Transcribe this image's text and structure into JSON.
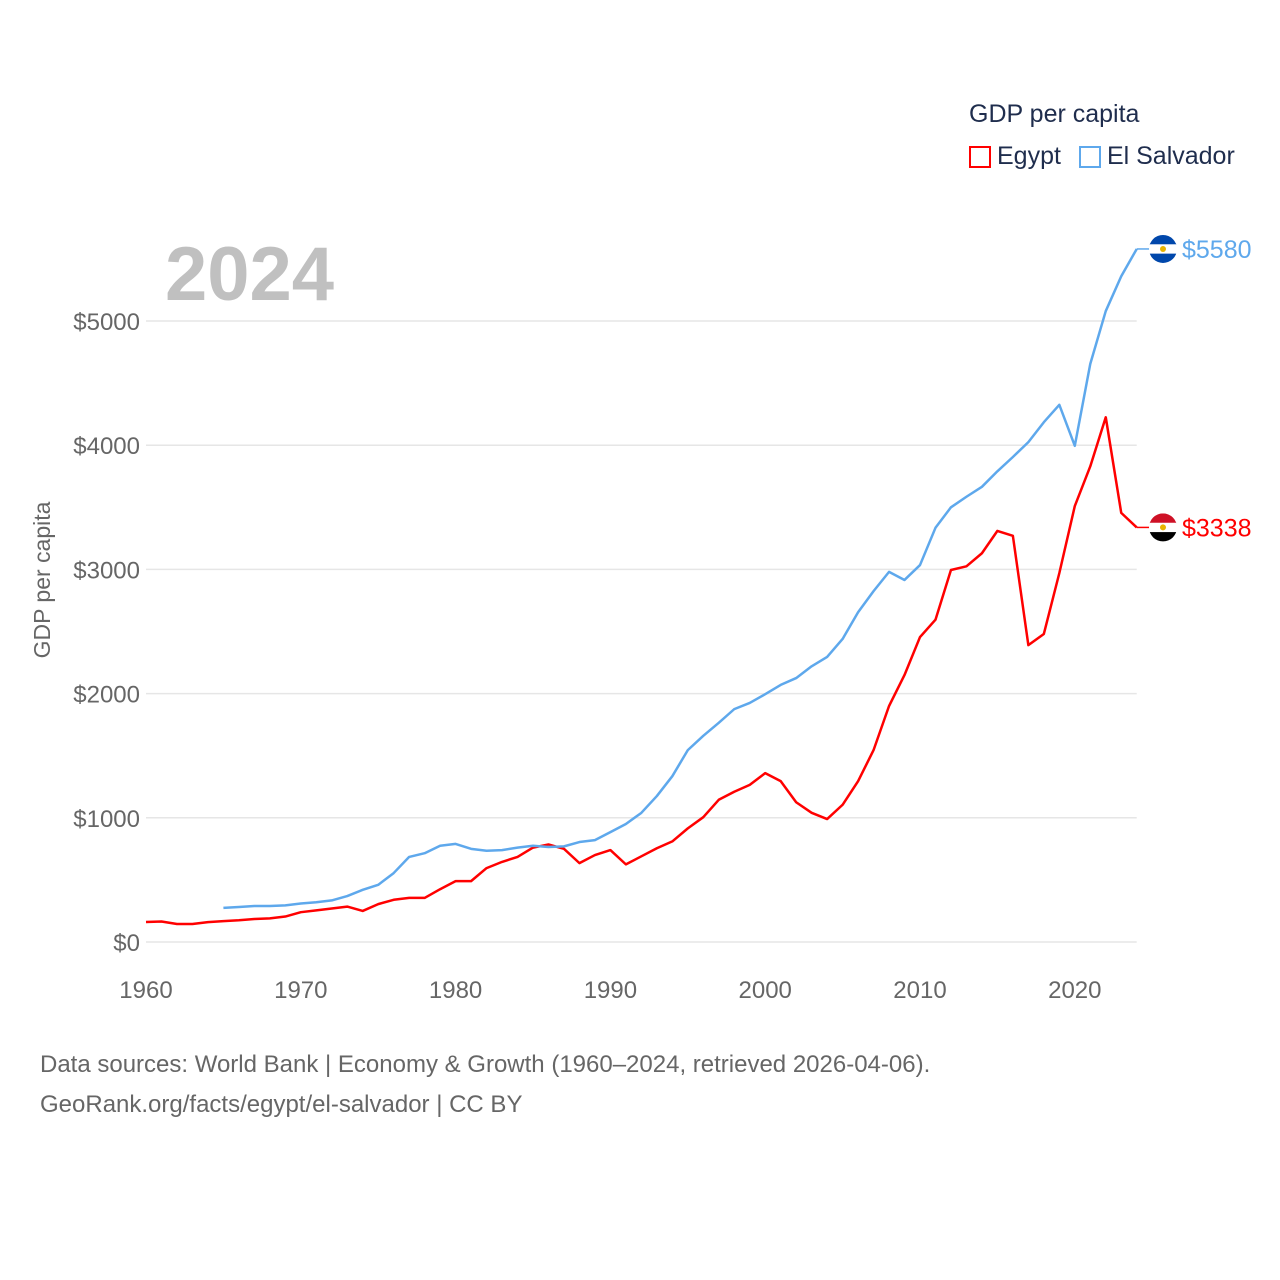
{
  "chart_data": {
    "type": "line",
    "title": "GDP per capita",
    "year_label": "2024",
    "ylabel": "GDP per capita",
    "xlabel": "",
    "xlim": [
      1960,
      2024
    ],
    "ylim": [
      0,
      5600
    ],
    "x_ticks": [
      1960,
      1970,
      1980,
      1990,
      2000,
      2010,
      2020
    ],
    "x_tick_labels": [
      "1960",
      "1970",
      "1980",
      "1990",
      "2000",
      "2010",
      "2020"
    ],
    "y_ticks": [
      0,
      1000,
      2000,
      3000,
      4000,
      5000
    ],
    "y_tick_labels": [
      "$0",
      "$1000",
      "$2000",
      "$3000",
      "$4000",
      "$5000"
    ],
    "grid": true,
    "legend_position": "top-right",
    "series": [
      {
        "name": "Egypt",
        "color": "#ff0000",
        "end_label": "$3338",
        "start_year": 1960,
        "values": [
          161,
          165,
          145,
          145,
          160,
          168,
          175,
          185,
          190,
          205,
          240,
          255,
          270,
          285,
          250,
          305,
          340,
          355,
          355,
          425,
          490,
          490,
          595,
          645,
          685,
          760,
          785,
          750,
          635,
          700,
          740,
          625,
          690,
          755,
          810,
          915,
          1005,
          1145,
          1210,
          1265,
          1360,
          1295,
          1125,
          1040,
          990,
          1105,
          1295,
          1545,
          1900,
          2150,
          2455,
          2595,
          2995,
          3025,
          3130,
          3310,
          3270,
          2390,
          2480,
          2970,
          3510,
          3830,
          4225,
          3455,
          3338
        ]
      },
      {
        "name": "El Salvador",
        "color": "#5ea8ec",
        "end_label": "$5580",
        "start_year": 1965,
        "values": [
          275,
          282,
          290,
          290,
          295,
          310,
          320,
          335,
          370,
          420,
          460,
          555,
          685,
          715,
          775,
          790,
          750,
          735,
          740,
          760,
          775,
          765,
          770,
          805,
          820,
          885,
          950,
          1040,
          1175,
          1335,
          1545,
          1660,
          1765,
          1875,
          1925,
          1995,
          2070,
          2125,
          2220,
          2295,
          2440,
          2655,
          2825,
          2980,
          2915,
          3035,
          3335,
          3500,
          3585,
          3665,
          3790,
          3905,
          4025,
          4185,
          4325,
          3995,
          4655,
          5080,
          5360,
          5580
        ]
      }
    ]
  },
  "footer": {
    "line1": "Data sources: World Bank | Economy & Growth (1960–2024, retrieved 2026-04-06).",
    "line2": "GeoRank.org/facts/egypt/el-salvador | CC BY"
  }
}
